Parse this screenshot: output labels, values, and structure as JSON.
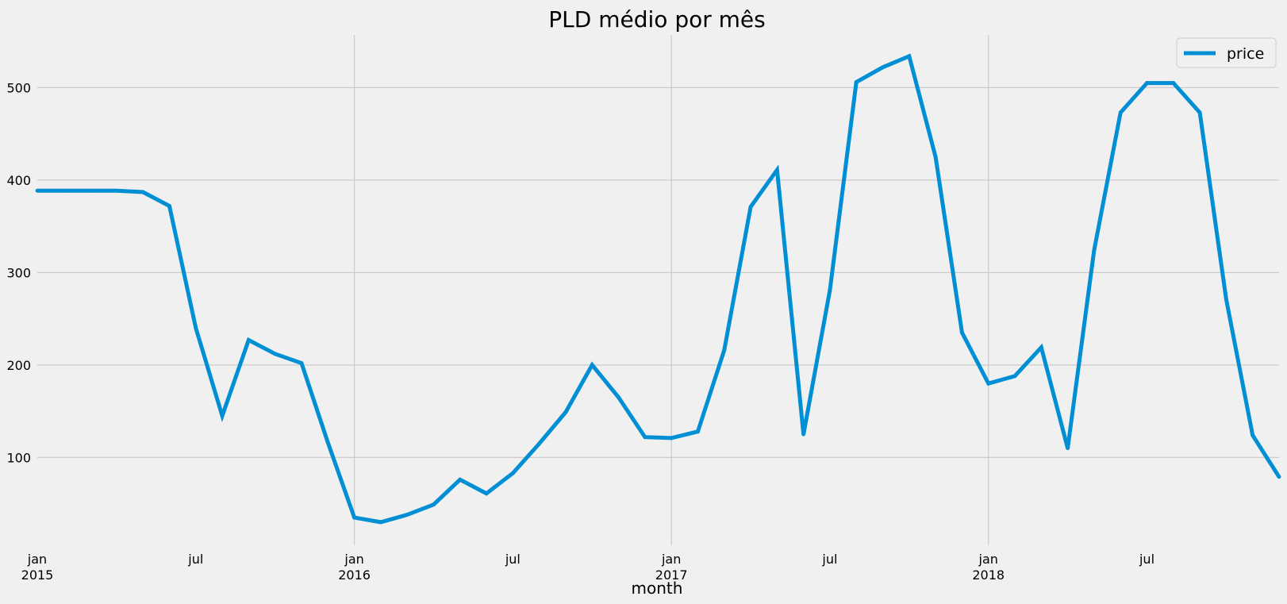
{
  "chart_data": {
    "type": "line",
    "title": "PLD médio por mês",
    "xlabel": "month",
    "ylabel": "",
    "x": [
      "2015-01",
      "2015-02",
      "2015-03",
      "2015-04",
      "2015-05",
      "2015-06",
      "2015-07",
      "2015-08",
      "2015-09",
      "2015-10",
      "2015-11",
      "2015-12",
      "2016-01",
      "2016-02",
      "2016-03",
      "2016-04",
      "2016-05",
      "2016-06",
      "2016-07",
      "2016-08",
      "2016-09",
      "2016-10",
      "2016-11",
      "2016-12",
      "2017-01",
      "2017-02",
      "2017-03",
      "2017-04",
      "2017-05",
      "2017-06",
      "2017-07",
      "2017-08",
      "2017-09",
      "2017-10",
      "2017-11",
      "2017-12",
      "2018-01",
      "2018-02",
      "2018-03",
      "2018-04",
      "2018-05",
      "2018-06",
      "2018-07",
      "2018-08",
      "2018-09",
      "2018-10",
      "2018-11",
      "2018-12"
    ],
    "series": [
      {
        "name": "price",
        "color": "#008fd5",
        "values": [
          388.5,
          388.5,
          388.5,
          388.5,
          387,
          372,
          240,
          145,
          227,
          212,
          202,
          116,
          35,
          30,
          38,
          49,
          76,
          61,
          83,
          115,
          149,
          200,
          165,
          122,
          121,
          128,
          216,
          371,
          411,
          125,
          281,
          506,
          522,
          534,
          425,
          235,
          180,
          188,
          219,
          110,
          324,
          473,
          505,
          505,
          473,
          271,
          124,
          79
        ]
      }
    ],
    "ylim": [
      5,
      557
    ],
    "yticks": [
      100,
      200,
      300,
      400,
      500
    ],
    "xticks": [
      {
        "month": "2015-01",
        "label": "jan",
        "year": "2015"
      },
      {
        "month": "2015-07",
        "label": "jul",
        "year": ""
      },
      {
        "month": "2016-01",
        "label": "jan",
        "year": "2016"
      },
      {
        "month": "2016-07",
        "label": "jul",
        "year": ""
      },
      {
        "month": "2017-01",
        "label": "jan",
        "year": "2017"
      },
      {
        "month": "2017-07",
        "label": "jul",
        "year": ""
      },
      {
        "month": "2018-01",
        "label": "jan",
        "year": "2018"
      },
      {
        "month": "2018-07",
        "label": "jul",
        "year": ""
      }
    ],
    "major_xgrid": [
      "2016-01",
      "2017-01",
      "2018-01"
    ],
    "grid": true,
    "legend_position": "top-right"
  }
}
